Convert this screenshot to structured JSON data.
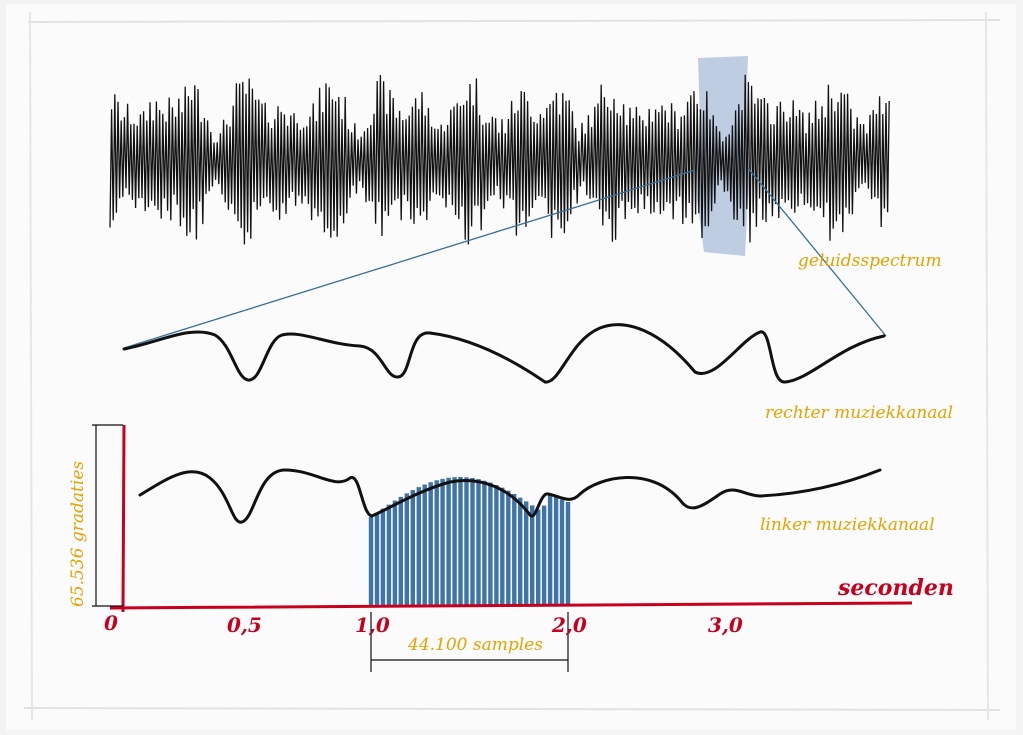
{
  "labels": {
    "spectrum": "geluidsspectrum",
    "right_channel": "rechter muziekkanaal",
    "left_channel": "linker muziekkanaal",
    "gradations": "65.536 gradaties",
    "seconds": "seconden",
    "samples": "44.100 samples"
  },
  "axis": {
    "ticks": [
      "0",
      "0,5",
      "1,0",
      "2,0",
      "3,0"
    ]
  },
  "colors": {
    "axis": "#c8001e",
    "label": "#e8a200",
    "highlight": "#b8c8e0",
    "samples": "#3f74a8",
    "wave": "#111111",
    "zoom_line": "#3a6f9a"
  }
}
